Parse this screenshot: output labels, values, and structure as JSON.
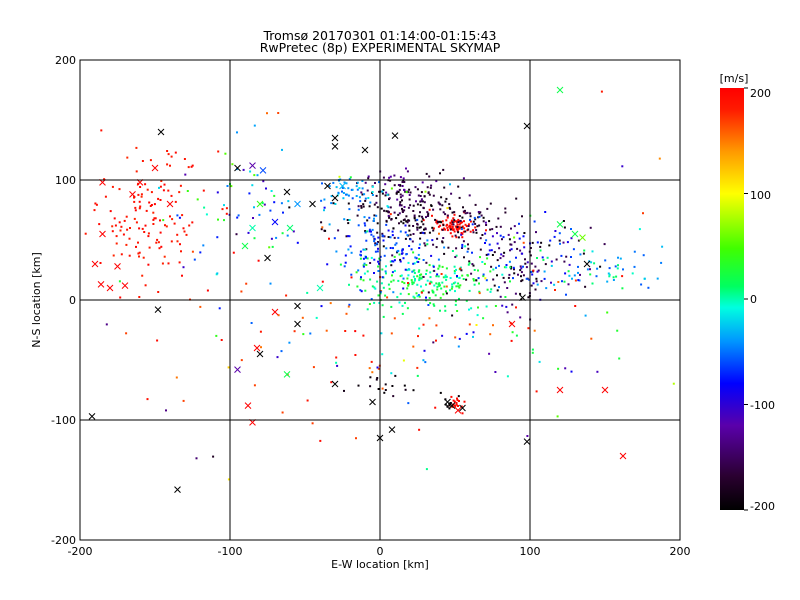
{
  "chart_data": {
    "type": "scatter",
    "title": "Tromsø 20170301 01:14:00-01:15:43",
    "subtitle": "RwPretec (8p) EXPERIMENTAL SKYMAP",
    "xlabel": "E-W location [km]",
    "ylabel": "N-S location [km]",
    "xlim": [
      -200,
      200
    ],
    "ylim": [
      -200,
      200
    ],
    "x_ticks": [
      "-200",
      "-100",
      "0",
      "100",
      "200"
    ],
    "y_ticks": [
      "-200",
      "-100",
      "0",
      "100",
      "200"
    ],
    "grid": true,
    "colorbar": {
      "label": "[m/s]",
      "range": [
        -200,
        200
      ],
      "ticks": [
        "-200",
        "-100",
        "0",
        "100",
        "200"
      ],
      "colormap": "rainbow-black-to-red"
    },
    "clusters": [
      {
        "cx": -155,
        "cy": 70,
        "sx": 20,
        "sy": 28,
        "n": 140,
        "vmin": 175,
        "vmax": 200
      },
      {
        "cx": 50,
        "cy": 62,
        "sx": 6,
        "sy": 4,
        "n": 80,
        "vmin": 190,
        "vmax": 200
      },
      {
        "cx": 25,
        "cy": 65,
        "sx": 30,
        "sy": 12,
        "n": 220,
        "vmin": -200,
        "vmax": -150
      },
      {
        "cx": 10,
        "cy": 90,
        "sx": 18,
        "sy": 10,
        "n": 100,
        "vmin": -200,
        "vmax": -120
      },
      {
        "cx": -20,
        "cy": 90,
        "sx": 12,
        "sy": 8,
        "n": 60,
        "vmin": -60,
        "vmax": -10
      },
      {
        "cx": 30,
        "cy": 15,
        "sx": 25,
        "sy": 12,
        "n": 220,
        "vmin": -10,
        "vmax": 40
      },
      {
        "cx": 5,
        "cy": 40,
        "sx": 20,
        "sy": 15,
        "n": 120,
        "vmin": -90,
        "vmax": -40
      },
      {
        "cx": 95,
        "cy": 30,
        "sx": 25,
        "sy": 18,
        "n": 110,
        "vmin": -200,
        "vmax": -130
      },
      {
        "cx": 140,
        "cy": 25,
        "sx": 25,
        "sy": 10,
        "n": 60,
        "vmin": -60,
        "vmax": 20
      },
      {
        "cx": 95,
        "cy": 40,
        "sx": 22,
        "sy": 15,
        "n": 70,
        "vmin": -110,
        "vmax": -50
      },
      {
        "cx": 50,
        "cy": -88,
        "sx": 3,
        "sy": 3,
        "n": 18,
        "vmin": 190,
        "vmax": 200
      },
      {
        "cx": 45,
        "cy": -86,
        "sx": 3,
        "sy": 3,
        "n": 10,
        "vmin": -200,
        "vmax": -190
      },
      {
        "cx": 0,
        "cy": -70,
        "sx": 8,
        "sy": 5,
        "n": 15,
        "vmin": -200,
        "vmax": -180
      },
      {
        "cx": 0,
        "cy": -20,
        "sx": 70,
        "sy": 45,
        "n": 90,
        "vmin": 150,
        "vmax": 200
      },
      {
        "cx": 50,
        "cy": -20,
        "sx": 60,
        "sy": 25,
        "n": 50,
        "vmin": -120,
        "vmax": 50
      },
      {
        "cx": -90,
        "cy": 80,
        "sx": 25,
        "sy": 25,
        "n": 60,
        "vmin": -120,
        "vmax": 60
      },
      {
        "cx": 0,
        "cy": 0,
        "sx": 110,
        "sy": 100,
        "n": 50,
        "vmin": -200,
        "vmax": 200
      }
    ],
    "crosses": [
      {
        "x": -146,
        "y": 140,
        "v": -200
      },
      {
        "x": -150,
        "y": 110,
        "v": 200
      },
      {
        "x": -160,
        "y": 98,
        "v": 200
      },
      {
        "x": -185,
        "y": 98,
        "v": 200
      },
      {
        "x": -165,
        "y": 88,
        "v": 200
      },
      {
        "x": -140,
        "y": 80,
        "v": 200
      },
      {
        "x": -185,
        "y": 55,
        "v": 200
      },
      {
        "x": -190,
        "y": 30,
        "v": 200
      },
      {
        "x": -175,
        "y": 28,
        "v": 200
      },
      {
        "x": -170,
        "y": 12,
        "v": 200
      },
      {
        "x": -180,
        "y": 10,
        "v": 200
      },
      {
        "x": -186,
        "y": 13,
        "v": 200
      },
      {
        "x": -148,
        "y": -8,
        "v": -200
      },
      {
        "x": -192,
        "y": -97,
        "v": -200
      },
      {
        "x": -135,
        "y": -158,
        "v": -200
      },
      {
        "x": -95,
        "y": 110,
        "v": -200
      },
      {
        "x": -85,
        "y": 112,
        "v": -120
      },
      {
        "x": -78,
        "y": 108,
        "v": -60
      },
      {
        "x": -80,
        "y": 80,
        "v": 40
      },
      {
        "x": -85,
        "y": 60,
        "v": 0
      },
      {
        "x": -90,
        "y": 45,
        "v": 20
      },
      {
        "x": -75,
        "y": 35,
        "v": -200
      },
      {
        "x": -70,
        "y": 65,
        "v": -80
      },
      {
        "x": -60,
        "y": 60,
        "v": 10
      },
      {
        "x": -55,
        "y": 80,
        "v": -40
      },
      {
        "x": -62,
        "y": 90,
        "v": -200
      },
      {
        "x": -45,
        "y": 80,
        "v": -200
      },
      {
        "x": -30,
        "y": 85,
        "v": -200
      },
      {
        "x": -25,
        "y": 95,
        "v": -30
      },
      {
        "x": -35,
        "y": 95,
        "v": -200
      },
      {
        "x": -30,
        "y": 135,
        "v": -200
      },
      {
        "x": -30,
        "y": 128,
        "v": -200
      },
      {
        "x": 10,
        "y": 137,
        "v": -200
      },
      {
        "x": -10,
        "y": 125,
        "v": -200
      },
      {
        "x": 98,
        "y": 145,
        "v": -200
      },
      {
        "x": 120,
        "y": 175,
        "v": 20
      },
      {
        "x": -40,
        "y": 10,
        "v": 0
      },
      {
        "x": -55,
        "y": -5,
        "v": -200
      },
      {
        "x": -55,
        "y": -20,
        "v": -200
      },
      {
        "x": -70,
        "y": -10,
        "v": 200
      },
      {
        "x": -80,
        "y": -45,
        "v": -200
      },
      {
        "x": -82,
        "y": -40,
        "v": 200
      },
      {
        "x": -62,
        "y": -62,
        "v": 20
      },
      {
        "x": -95,
        "y": -58,
        "v": -120
      },
      {
        "x": -88,
        "y": -88,
        "v": 200
      },
      {
        "x": -85,
        "y": -102,
        "v": 200
      },
      {
        "x": -30,
        "y": -70,
        "v": -200
      },
      {
        "x": -5,
        "y": -85,
        "v": -200
      },
      {
        "x": 0,
        "y": -115,
        "v": -200
      },
      {
        "x": 8,
        "y": -108,
        "v": -200
      },
      {
        "x": 98,
        "y": -118,
        "v": -200
      },
      {
        "x": 120,
        "y": -75,
        "v": 200
      },
      {
        "x": 150,
        "y": -75,
        "v": 200
      },
      {
        "x": 162,
        "y": -130,
        "v": 200
      },
      {
        "x": 88,
        "y": -20,
        "v": 200
      },
      {
        "x": 138,
        "y": 30,
        "v": -200
      },
      {
        "x": 130,
        "y": 55,
        "v": 20
      },
      {
        "x": 120,
        "y": 63,
        "v": 20
      },
      {
        "x": 135,
        "y": 52,
        "v": 60
      },
      {
        "x": 95,
        "y": 2,
        "v": -200
      },
      {
        "x": 45,
        "y": -85,
        "v": -200
      },
      {
        "x": 48,
        "y": -88,
        "v": -200
      },
      {
        "x": 52,
        "y": -92,
        "v": 200
      },
      {
        "x": 55,
        "y": -90,
        "v": -200
      }
    ]
  }
}
